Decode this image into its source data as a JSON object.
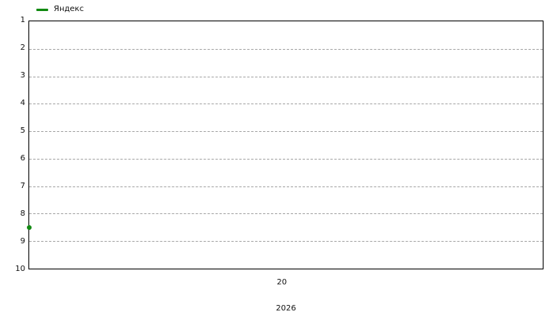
{
  "chart_data": {
    "type": "line",
    "title": "",
    "legend": {
      "position": "top-left",
      "entries": [
        {
          "label": "Яндекс",
          "color": "#128a12"
        }
      ]
    },
    "y_axis": {
      "min": 1,
      "max": 10,
      "inverted": true,
      "ticks": [
        1,
        2,
        3,
        4,
        5,
        6,
        7,
        8,
        9,
        10
      ],
      "grid_values": [
        2,
        3,
        4,
        5,
        6,
        7,
        8,
        9
      ],
      "grid_style": "dashed"
    },
    "x_axis": {
      "ticks": [
        {
          "label": "20",
          "frac": 0.492
        }
      ],
      "year_label": {
        "text": "2026",
        "frac": 0.5
      }
    },
    "series": [
      {
        "name": "Яндекс",
        "color": "#128a12",
        "points": [
          {
            "x_frac": 0,
            "value": 8.5
          }
        ]
      }
    ]
  },
  "colors": {
    "background": "#ffffff",
    "axis": "#000000",
    "grid": "#a6a6a6",
    "text": "#111111",
    "series_green": "#128a12"
  }
}
